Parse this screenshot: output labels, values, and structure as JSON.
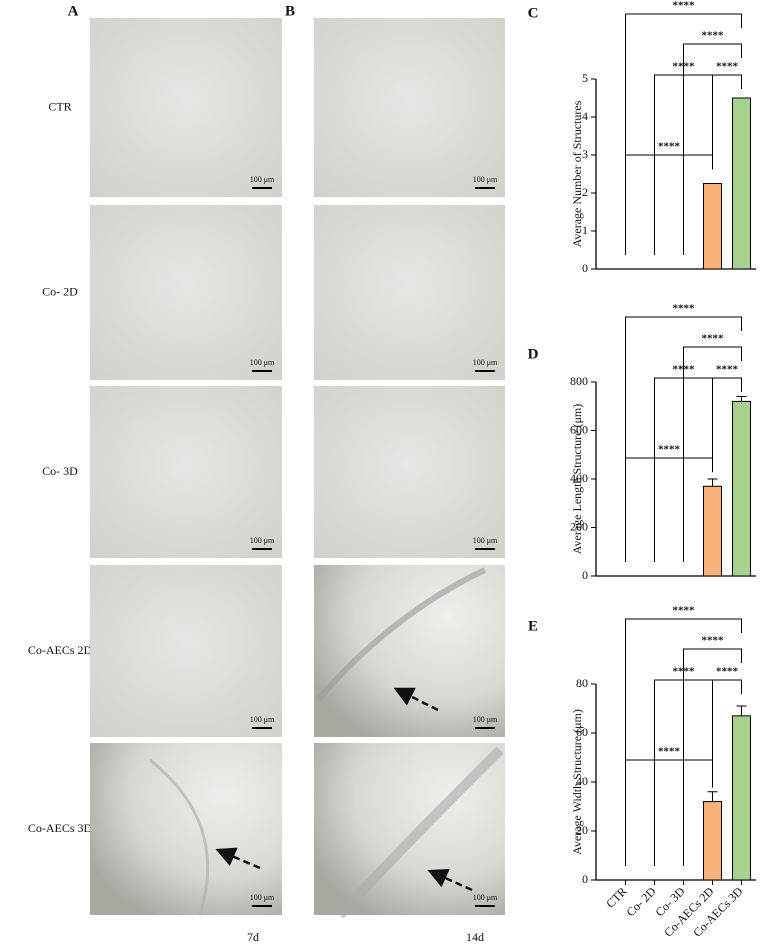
{
  "panels": [
    "A",
    "B",
    "C",
    "D",
    "E"
  ],
  "rows": [
    {
      "label": "CTR"
    },
    {
      "label": "Co- 2D"
    },
    {
      "label": "Co- 3D"
    },
    {
      "label": "Co-AECs 2D"
    },
    {
      "label": "Co-AECs 3D"
    }
  ],
  "columns": [
    {
      "caption": "7d"
    },
    {
      "caption": "14d"
    }
  ],
  "scale_bar": "100 μm",
  "chart_data": [
    {
      "type": "bar",
      "y_label": "Average Number of Structures",
      "values": [
        0,
        0,
        0,
        2.25,
        4.5
      ],
      "colors": [
        "#f9b27a",
        "#f9b27a",
        "#f9b27a",
        "#f9b27a",
        "#a9d18e"
      ],
      "ylim": [
        0,
        5
      ],
      "yticks": [
        0,
        1,
        2,
        3,
        4,
        5
      ],
      "significance": [
        {
          "from": 0,
          "to": 4,
          "label": "****"
        },
        {
          "from": 2,
          "to": 4,
          "label": "****"
        },
        {
          "from": 1,
          "to": 3,
          "label": "****"
        },
        {
          "from": 3,
          "to": 4,
          "label": "****"
        },
        {
          "from": 0,
          "to": 3,
          "label": "****"
        }
      ]
    },
    {
      "type": "bar",
      "y_label": "Average Length Structure (μm)",
      "values": [
        0,
        0,
        0,
        370,
        720
      ],
      "errors": [
        0,
        0,
        0,
        30,
        20
      ],
      "colors": [
        "#f9b27a",
        "#f9b27a",
        "#f9b27a",
        "#f9b27a",
        "#a9d18e"
      ],
      "ylim": [
        0,
        800
      ],
      "yticks": [
        0,
        200,
        400,
        600,
        800
      ],
      "significance": [
        {
          "from": 0,
          "to": 4,
          "label": "****"
        },
        {
          "from": 2,
          "to": 4,
          "label": "****"
        },
        {
          "from": 1,
          "to": 3,
          "label": "****"
        },
        {
          "from": 3,
          "to": 4,
          "label": "****"
        },
        {
          "from": 0,
          "to": 3,
          "label": "****"
        }
      ]
    },
    {
      "type": "bar",
      "y_label": "Average Width Structure (μm)",
      "categories": [
        "CTR",
        "Co- 2D",
        "Co- 3D",
        "Co-AECs 2D",
        "Co-AECs 3D"
      ],
      "values": [
        0,
        0,
        0,
        32,
        67
      ],
      "errors": [
        0,
        0,
        0,
        4,
        4
      ],
      "colors": [
        "#f9b27a",
        "#f9b27a",
        "#f9b27a",
        "#f9b27a",
        "#a9d18e"
      ],
      "ylim": [
        0,
        80
      ],
      "yticks": [
        0,
        20,
        40,
        60,
        80
      ],
      "significance": [
        {
          "from": 0,
          "to": 4,
          "label": "****"
        },
        {
          "from": 2,
          "to": 4,
          "label": "****"
        },
        {
          "from": 1,
          "to": 3,
          "label": "****"
        },
        {
          "from": 3,
          "to": 4,
          "label": "****"
        },
        {
          "from": 0,
          "to": 3,
          "label": "****"
        }
      ]
    }
  ]
}
